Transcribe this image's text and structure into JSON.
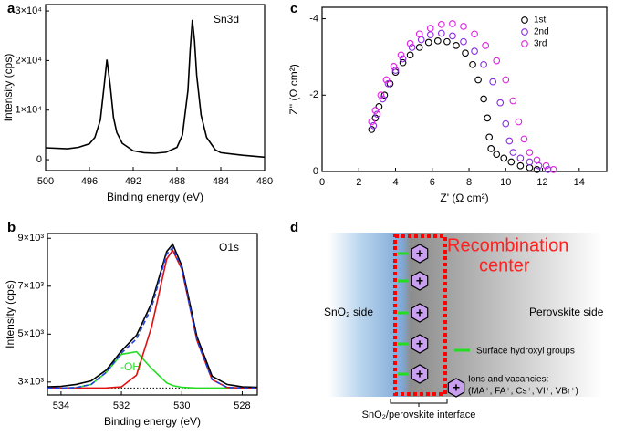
{
  "chart_data": [
    {
      "type": "line",
      "panel_label": "a",
      "annotation": "Sn3d",
      "xlabel": "Binding energy (eV)",
      "ylabel": "Intensity (cps)",
      "xlim": [
        500,
        480
      ],
      "xticks": [
        500,
        496,
        492,
        488,
        484,
        480
      ],
      "ylim": [
        -2200,
        31300
      ],
      "yticks": [
        0,
        {
          "value": 10000,
          "label": "1×10⁴"
        },
        {
          "value": 20000,
          "label": "2×10⁴"
        },
        {
          "value": 30000,
          "label": "3×10⁴"
        }
      ],
      "x": [
        500,
        498,
        497,
        496,
        495.5,
        495,
        494.7,
        494.4,
        494.1,
        493.8,
        493.5,
        493,
        492,
        491,
        490,
        489,
        488,
        487.5,
        487,
        486.8,
        486.6,
        486.4,
        486.2,
        485.8,
        485.3,
        484.5,
        484,
        482,
        480
      ],
      "series": [
        {
          "color": "#000000",
          "values": [
            2400,
            2200,
            2500,
            3200,
            4500,
            8000,
            14000,
            20200,
            15000,
            8500,
            5500,
            3300,
            1800,
            1400,
            1300,
            1500,
            2500,
            5000,
            14000,
            22000,
            28200,
            24000,
            17000,
            9000,
            4500,
            2000,
            1400,
            900,
            500
          ]
        }
      ]
    },
    {
      "type": "line",
      "panel_label": "b",
      "annotation": "O1s",
      "label_oh": "-OH",
      "xlabel": "Binding energy (eV)",
      "ylabel": "Intensity (cps)",
      "xlim": [
        534.45,
        527.5
      ],
      "xticks": [
        534,
        532,
        530,
        528
      ],
      "ylim": [
        2460,
        9200
      ],
      "yticks": [
        {
          "value": 3000,
          "label": "3×10³"
        },
        {
          "value": 5000,
          "label": "5×10³"
        },
        {
          "value": 7000,
          "label": "7×10³"
        },
        {
          "value": 9000,
          "label": "9×10³"
        }
      ],
      "x": [
        534.45,
        534,
        533.5,
        533,
        532.5,
        532,
        531.5,
        531,
        530.5,
        530.3,
        530,
        529.5,
        529,
        528.5,
        528,
        527.5
      ],
      "series": [
        {
          "color": "#000000",
          "style": "dotted",
          "values": [
            2750,
            2750,
            2750,
            2750,
            2750,
            2750,
            2750,
            2750,
            2750,
            2750,
            2750,
            2750,
            2750,
            2750,
            2750,
            2750
          ]
        },
        {
          "color": "#22dd22",
          "style": "solid",
          "values": [
            2750,
            2750,
            2768,
            2902,
            3406,
            4158,
            4264,
            3566,
            2966,
            2855,
            2779,
            2750,
            2750,
            2750,
            2750,
            2750
          ]
        },
        {
          "color": "#e01010",
          "style": "solid",
          "values": [
            2750,
            2750,
            2750,
            2750,
            2752,
            2798,
            3285,
            5309,
            8132,
            8500,
            7706,
            4745,
            3103,
            2777,
            2750,
            2750
          ]
        },
        {
          "color": "#000000",
          "style": "solid",
          "values": [
            2800,
            2820,
            2900,
            3050,
            3500,
            4300,
            4950,
            6300,
            8450,
            8750,
            7850,
            4900,
            3250,
            2900,
            2800,
            2780
          ]
        },
        {
          "color": "#2040e0",
          "style": "dashed",
          "values": [
            2750,
            2750,
            2768,
            2902,
            3408,
            4206,
            4799,
            6125,
            8348,
            8605,
            7735,
            4745,
            3103,
            2777,
            2750,
            2750
          ]
        }
      ]
    },
    {
      "type": "scatter",
      "panel_label": "c",
      "xlabel": "Z' (Ω cm²)",
      "ylabel": "Z'' (Ω cm²)",
      "legend": "upper right",
      "xlim": [
        0,
        15.5
      ],
      "xticks": [
        0,
        2,
        4,
        6,
        8,
        10,
        12,
        14
      ],
      "ylim": [
        0,
        -4.3
      ],
      "yticks": [
        0,
        -2,
        -4
      ],
      "series": [
        {
          "name": "1st",
          "color": "#000000",
          "x": [
            2.7,
            2.9,
            3.1,
            3.4,
            3.7,
            4.0,
            4.4,
            4.8,
            5.3,
            5.8,
            6.3,
            6.8,
            7.3,
            7.8,
            8.2,
            8.5,
            8.8,
            9.0,
            9.1,
            9.2,
            9.5,
            9.9,
            10.3,
            10.8,
            11.3,
            11.7
          ],
          "values": [
            -1.1,
            -1.4,
            -1.7,
            -2.0,
            -2.3,
            -2.6,
            -2.85,
            -3.05,
            -3.25,
            -3.38,
            -3.42,
            -3.4,
            -3.3,
            -3.1,
            -2.8,
            -2.4,
            -1.9,
            -1.4,
            -0.9,
            -0.6,
            -0.45,
            -0.35,
            -0.25,
            -0.15,
            -0.1,
            -0.05
          ]
        },
        {
          "name": "2nd",
          "color": "#8a2be2",
          "x": [
            2.8,
            3.0,
            3.3,
            3.6,
            4.0,
            4.4,
            4.9,
            5.4,
            5.9,
            6.5,
            7.1,
            7.7,
            8.3,
            8.8,
            9.3,
            9.7,
            10.0,
            10.2,
            10.4,
            10.8,
            11.3,
            11.8,
            12.3
          ],
          "values": [
            -1.2,
            -1.5,
            -1.9,
            -2.3,
            -2.65,
            -2.95,
            -3.25,
            -3.45,
            -3.58,
            -3.62,
            -3.55,
            -3.4,
            -3.15,
            -2.8,
            -2.35,
            -1.8,
            -1.25,
            -0.8,
            -0.5,
            -0.35,
            -0.25,
            -0.15,
            -0.05
          ]
        },
        {
          "name": "3rd",
          "color": "#e020e0",
          "x": [
            2.7,
            2.9,
            3.2,
            3.5,
            3.9,
            4.3,
            4.8,
            5.3,
            5.9,
            6.5,
            7.1,
            7.7,
            8.3,
            8.9,
            9.5,
            10.0,
            10.4,
            10.7,
            11.0,
            11.3,
            11.7,
            12.2,
            12.6
          ],
          "values": [
            -1.3,
            -1.6,
            -2.0,
            -2.4,
            -2.75,
            -3.05,
            -3.35,
            -3.6,
            -3.75,
            -3.85,
            -3.87,
            -3.8,
            -3.6,
            -3.3,
            -2.9,
            -2.4,
            -1.85,
            -1.3,
            -0.85,
            -0.5,
            -0.3,
            -0.15,
            -0.05
          ]
        }
      ]
    }
  ],
  "diagram": {
    "panel_label": "d",
    "callout": [
      "Recombination",
      "center"
    ],
    "left": "SnO₂ side",
    "right": "Perovskite side",
    "legend_hydroxyl": "Surface hydroxyl groups",
    "legend_ions": [
      "Ions and vacancies:",
      "(MA⁺; FA⁺; Cs⁺; VI⁺; VBr⁺)"
    ],
    "interface": "SnO₂/perovskite interface",
    "charge": "+"
  }
}
